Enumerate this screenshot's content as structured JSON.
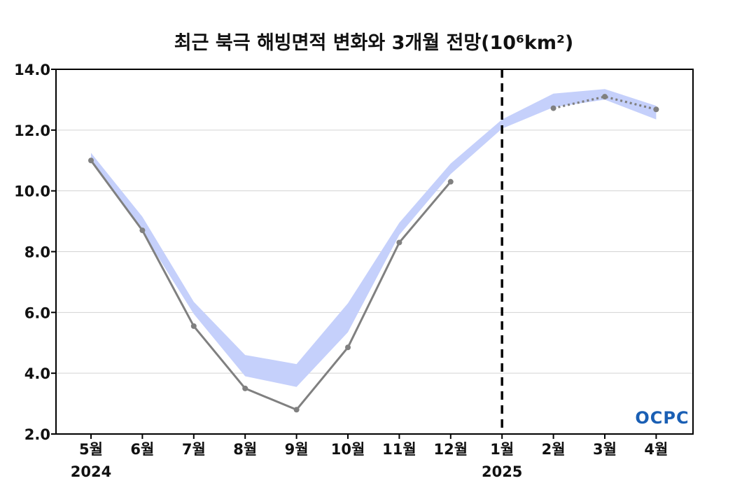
{
  "chart_data": {
    "type": "line",
    "title": "최근 북극 해빙면적 변화와 3개월 전망(10⁶km²)",
    "categories": [
      "5월",
      "6월",
      "7월",
      "8월",
      "9월",
      "10월",
      "11월",
      "12월",
      "1월",
      "2월",
      "3월",
      "4월"
    ],
    "year_labels": [
      {
        "category": "5월",
        "label": "2024"
      },
      {
        "category": "1월",
        "label": "2025"
      }
    ],
    "yticks": [
      "2.0",
      "4.0",
      "6.0",
      "8.0",
      "10.0",
      "12.0",
      "14.0"
    ],
    "ylim": [
      2.0,
      14.0
    ],
    "grid": true,
    "series": [
      {
        "style": "solid",
        "color": "#808080",
        "values": [
          11.0,
          8.7,
          5.55,
          3.5,
          2.8,
          4.85,
          8.3,
          10.3,
          null,
          null,
          null,
          null
        ]
      },
      {
        "style": "dotted",
        "color": "#808080",
        "values": [
          null,
          null,
          null,
          null,
          null,
          null,
          null,
          null,
          null,
          12.72,
          13.1,
          12.68
        ]
      }
    ],
    "band": {
      "color": "#c5d0fb",
      "lower": [
        10.95,
        8.65,
        5.95,
        3.9,
        3.55,
        5.35,
        8.55,
        10.55,
        12.05,
        12.75,
        13.0,
        12.35
      ],
      "upper": [
        11.25,
        9.15,
        6.35,
        4.6,
        4.3,
        6.3,
        8.95,
        10.9,
        12.35,
        13.2,
        13.35,
        12.8
      ]
    },
    "divider_at": "1월",
    "logo": "OCPC"
  }
}
